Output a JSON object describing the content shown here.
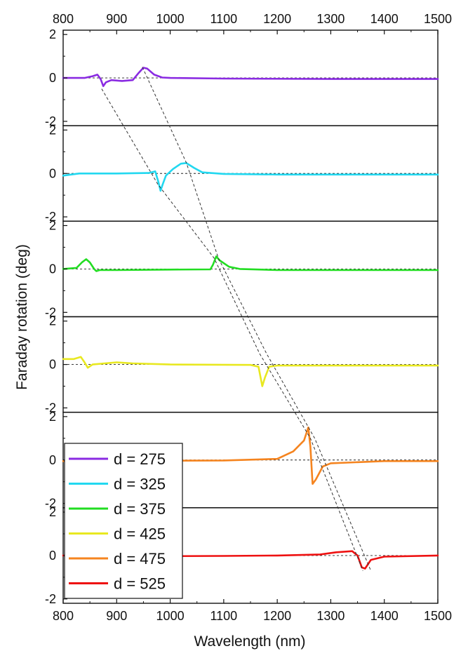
{
  "chart_data": {
    "type": "line",
    "xlabel": "Wavelength (nm)",
    "ylabel": "Faraday rotation (deg)",
    "xlim": [
      800,
      1500
    ],
    "ylim": [
      -2.2,
      2.2
    ],
    "x_ticks": [
      "800",
      "900",
      "1000",
      "1100",
      "1200",
      "1300",
      "1400",
      "1500"
    ],
    "y_ticks": [
      "2",
      "0",
      "-2"
    ],
    "legend_position": "bottom-left",
    "zero_reference": "dashed horizontal line at 0 in each panel",
    "panels": [
      {
        "name": "d = 275",
        "color": "#8a2be2",
        "points": [
          [
            800,
            0
          ],
          [
            840,
            0
          ],
          [
            855,
            0.08
          ],
          [
            864,
            0.15
          ],
          [
            870,
            -0.05
          ],
          [
            875,
            -0.38
          ],
          [
            880,
            -0.2
          ],
          [
            890,
            -0.1
          ],
          [
            910,
            -0.14
          ],
          [
            930,
            -0.1
          ],
          [
            940,
            0.2
          ],
          [
            950,
            0.47
          ],
          [
            957,
            0.43
          ],
          [
            970,
            0.15
          ],
          [
            985,
            0.02
          ],
          [
            1000,
            0
          ],
          [
            1100,
            -0.03
          ],
          [
            1300,
            -0.05
          ],
          [
            1500,
            -0.05
          ]
        ]
      },
      {
        "name": "d = 325",
        "color": "#22d8f0",
        "points": [
          [
            800,
            -0.1
          ],
          [
            830,
            0
          ],
          [
            900,
            0
          ],
          [
            960,
            0.02
          ],
          [
            972,
            0.1
          ],
          [
            978,
            -0.4
          ],
          [
            982,
            -0.8
          ],
          [
            986,
            -0.5
          ],
          [
            992,
            -0.1
          ],
          [
            1005,
            0.2
          ],
          [
            1020,
            0.45
          ],
          [
            1030,
            0.48
          ],
          [
            1045,
            0.25
          ],
          [
            1060,
            0.05
          ],
          [
            1100,
            -0.02
          ],
          [
            1200,
            -0.05
          ],
          [
            1500,
            -0.05
          ]
        ]
      },
      {
        "name": "d = 375",
        "color": "#22dd22",
        "points": [
          [
            800,
            0
          ],
          [
            825,
            0.05
          ],
          [
            835,
            0.3
          ],
          [
            843,
            0.45
          ],
          [
            850,
            0.3
          ],
          [
            858,
            0
          ],
          [
            862,
            -0.1
          ],
          [
            868,
            -0.05
          ],
          [
            900,
            -0.05
          ],
          [
            1000,
            -0.03
          ],
          [
            1075,
            -0.02
          ],
          [
            1080,
            0.2
          ],
          [
            1086,
            0.58
          ],
          [
            1092,
            0.4
          ],
          [
            1110,
            0.1
          ],
          [
            1130,
            0
          ],
          [
            1200,
            -0.05
          ],
          [
            1500,
            -0.05
          ]
        ]
      },
      {
        "name": "d = 425",
        "color": "#e8e820",
        "points": [
          [
            800,
            0.25
          ],
          [
            820,
            0.25
          ],
          [
            833,
            0.35
          ],
          [
            840,
            0.1
          ],
          [
            846,
            -0.15
          ],
          [
            855,
            0
          ],
          [
            900,
            0.1
          ],
          [
            930,
            0.05
          ],
          [
            1000,
            0
          ],
          [
            1150,
            -0.02
          ],
          [
            1165,
            -0.1
          ],
          [
            1172,
            -1.0
          ],
          [
            1177,
            -0.6
          ],
          [
            1185,
            -0.1
          ],
          [
            1200,
            -0.05
          ],
          [
            1500,
            -0.05
          ]
        ]
      },
      {
        "name": "d = 475",
        "color": "#f5841f",
        "points": [
          [
            800,
            -0.05
          ],
          [
            1100,
            -0.02
          ],
          [
            1200,
            0.05
          ],
          [
            1230,
            0.4
          ],
          [
            1250,
            0.9
          ],
          [
            1258,
            1.5
          ],
          [
            1262,
            0.6
          ],
          [
            1266,
            -1.1
          ],
          [
            1272,
            -0.9
          ],
          [
            1285,
            -0.3
          ],
          [
            1300,
            -0.15
          ],
          [
            1400,
            -0.05
          ],
          [
            1500,
            -0.05
          ]
        ]
      },
      {
        "name": "d = 525",
        "color": "#ee1111",
        "points": [
          [
            800,
            0
          ],
          [
            860,
            0
          ],
          [
            900,
            -0.05
          ],
          [
            1000,
            -0.03
          ],
          [
            1100,
            -0.02
          ],
          [
            1200,
            0
          ],
          [
            1280,
            0.05
          ],
          [
            1310,
            0.15
          ],
          [
            1340,
            0.2
          ],
          [
            1350,
            0
          ],
          [
            1358,
            -0.55
          ],
          [
            1364,
            -0.6
          ],
          [
            1375,
            -0.2
          ],
          [
            1400,
            -0.05
          ],
          [
            1500,
            0
          ]
        ]
      }
    ],
    "guide_lines": [
      {
        "name": "guide-line-1",
        "points": [
          [
            872,
            -0.5
          ],
          [
            977,
            -0.5
          ],
          [
            1082,
            0.5
          ],
          [
            1167,
            0.5
          ],
          [
            1262,
            1.0
          ],
          [
            1360,
            -0.7
          ]
        ]
      },
      {
        "name": "guide-line-2",
        "points": [
          [
            948,
            0.5
          ],
          [
            1030,
            0.5
          ],
          [
            1090,
            0.5
          ],
          [
            1180,
            0.5
          ],
          [
            1270,
            1.0
          ],
          [
            1375,
            -0.7
          ]
        ]
      }
    ]
  }
}
